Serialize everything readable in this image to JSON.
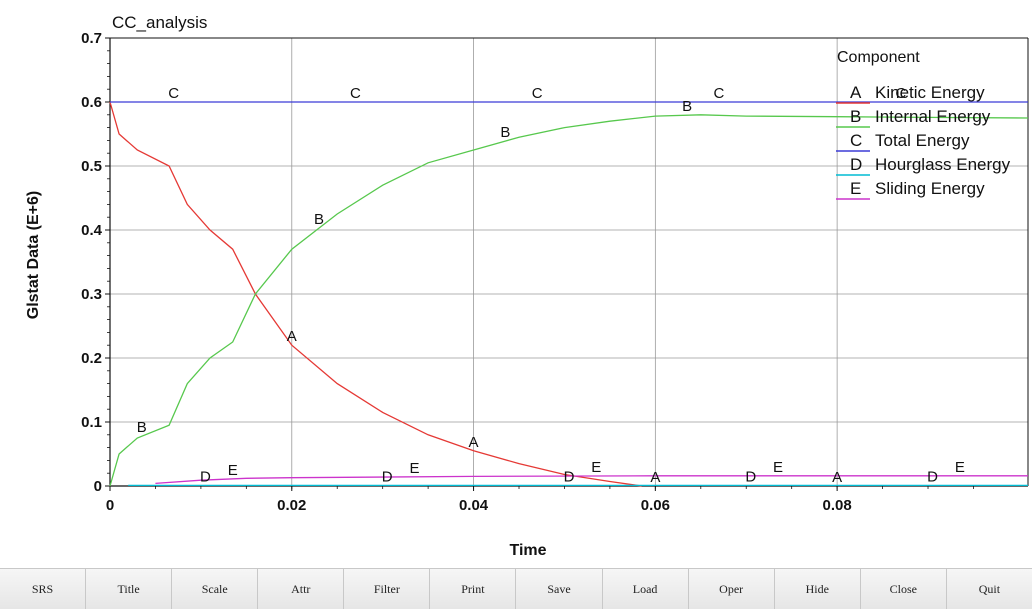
{
  "chart_data": {
    "type": "line",
    "title": "CC_analysis",
    "xlabel": "Time",
    "ylabel": "Glstat Data (E+6)",
    "xlim": [
      0,
      0.101
    ],
    "ylim": [
      0,
      0.7
    ],
    "xticks": [
      0,
      0.02,
      0.04,
      0.06,
      0.08
    ],
    "xtick_labels": [
      "0",
      "0.02",
      "0.04",
      "0.06",
      "0.08"
    ],
    "yticks": [
      0,
      0.1,
      0.2,
      0.3,
      0.4,
      0.5,
      0.6,
      0.7
    ],
    "ytick_labels": [
      "0",
      "0.1",
      "0.2",
      "0.3",
      "0.4",
      "0.5",
      "0.6",
      "0.7"
    ],
    "grid": true,
    "legend_title": "Component",
    "legend_position": "top-right",
    "series": [
      {
        "letter": "A",
        "name": "Kinetic Energy",
        "color": "#e53935",
        "x": [
          0,
          0.001,
          0.003,
          0.0065,
          0.0085,
          0.011,
          0.0135,
          0.016,
          0.02,
          0.025,
          0.03,
          0.035,
          0.04,
          0.045,
          0.05,
          0.055,
          0.0585
        ],
        "y": [
          0.6,
          0.55,
          0.525,
          0.5,
          0.44,
          0.4,
          0.37,
          0.3,
          0.22,
          0.16,
          0.115,
          0.08,
          0.055,
          0.035,
          0.018,
          0.007,
          0
        ],
        "marker_x": [
          0.02,
          0.04,
          0.06,
          0.08
        ]
      },
      {
        "letter": "B",
        "name": "Internal Energy",
        "color": "#57c84d",
        "x": [
          0,
          0.001,
          0.003,
          0.0065,
          0.0085,
          0.011,
          0.0135,
          0.016,
          0.02,
          0.025,
          0.03,
          0.035,
          0.04,
          0.045,
          0.05,
          0.055,
          0.06,
          0.065,
          0.07,
          0.08,
          0.09,
          0.101
        ],
        "y": [
          0,
          0.05,
          0.075,
          0.095,
          0.16,
          0.2,
          0.225,
          0.3,
          0.37,
          0.425,
          0.47,
          0.505,
          0.525,
          0.545,
          0.56,
          0.57,
          0.578,
          0.58,
          0.578,
          0.577,
          0.576,
          0.575
        ],
        "marker_x": [
          0.0035,
          0.023,
          0.0435,
          0.0635
        ]
      },
      {
        "letter": "C",
        "name": "Total Energy",
        "color": "#3b3bd6",
        "x": [
          0,
          0.101
        ],
        "y": [
          0.6,
          0.6
        ],
        "marker_x": [
          0.007,
          0.027,
          0.047,
          0.067,
          0.087
        ]
      },
      {
        "letter": "D",
        "name": "Hourglass Energy",
        "color": "#00bcd4",
        "x": [
          0.002,
          0.101
        ],
        "y": [
          0.001,
          0.001
        ],
        "marker_x": [
          0.0105,
          0.0305,
          0.0505,
          0.0705,
          0.0905
        ]
      },
      {
        "letter": "E",
        "name": "Sliding Energy",
        "color": "#cc33cc",
        "x": [
          0.005,
          0.01,
          0.015,
          0.02,
          0.04,
          0.06,
          0.08,
          0.101
        ],
        "y": [
          0.004,
          0.009,
          0.012,
          0.013,
          0.015,
          0.016,
          0.016,
          0.016
        ],
        "marker_x": [
          0.0135,
          0.0335,
          0.0535,
          0.0735,
          0.0935
        ]
      }
    ]
  },
  "toolbar": {
    "buttons": [
      "SRS",
      "Title",
      "Scale",
      "Attr",
      "Filter",
      "Print",
      "Save",
      "Load",
      "Oper",
      "Hide",
      "Close",
      "Quit"
    ]
  }
}
